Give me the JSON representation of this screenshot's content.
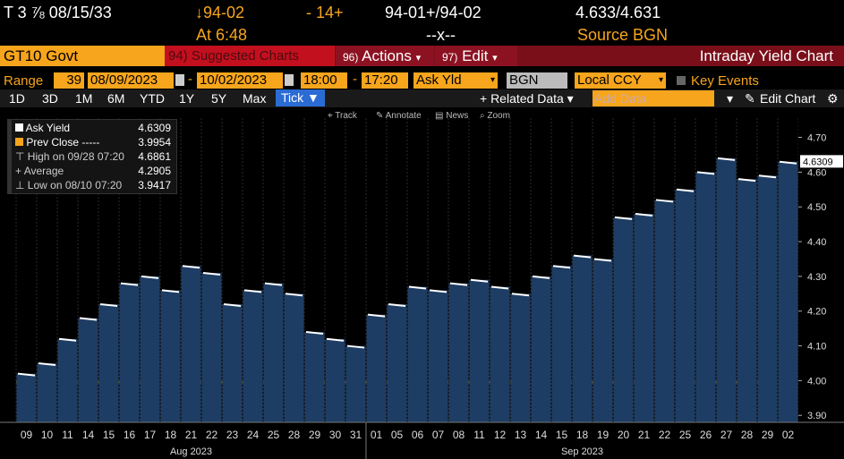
{
  "header": {
    "security": "T 3 ⅞ 08/15/33",
    "price_change": "↓94-02",
    "tick_change": "- 14+",
    "bid_ask": "94-01+/94-02",
    "yield_bid_ask": "4.633/4.631",
    "time_label": "At 6:48",
    "size": "--x--",
    "source": "Source BGN"
  },
  "menu": {
    "ticker": "GT10 Govt",
    "suggested_num": "94)",
    "suggested": "Suggested Charts",
    "actions_num": "96)",
    "actions": "Actions",
    "edit_num": "97)",
    "edit": "Edit",
    "title": "Intraday Yield Chart"
  },
  "controls": {
    "range_label": "Range",
    "range_value": "39",
    "start_date": "08/09/2023",
    "end_date": "10/02/2023",
    "start_time": "18:00",
    "end_time": "17:20",
    "field": "Ask Yld",
    "source": "BGN",
    "currency": "Local CCY",
    "key_events": "Key Events"
  },
  "periods": [
    "1D",
    "3D",
    "1M",
    "6M",
    "YTD",
    "1Y",
    "5Y",
    "Max"
  ],
  "tick_label": "Tick ▼",
  "related_data": "+ Related Data ▾",
  "add_data_placeholder": "Add Data",
  "edit_chart": "Edit Chart",
  "toolbar": [
    "Track",
    "Annotate",
    "News",
    "Zoom"
  ],
  "legend": [
    {
      "label": "Ask Yield",
      "value": "4.6309",
      "color": "#ffffff"
    },
    {
      "label": "Prev Close -----",
      "value": "3.9954",
      "color": "#f7a51c"
    },
    {
      "label": "High on 09/28 07:20",
      "value": "4.6861",
      "color": "#aaaaaa"
    },
    {
      "label": "Average",
      "value": "4.2905",
      "color": "#aaaaaa"
    },
    {
      "label": "Low on 08/10 07:20",
      "value": "3.9417",
      "color": "#aaaaaa"
    }
  ],
  "chart_data": {
    "type": "bar",
    "categories": [
      "09",
      "10",
      "11",
      "14",
      "15",
      "16",
      "17",
      "18",
      "21",
      "22",
      "23",
      "24",
      "25",
      "28",
      "29",
      "30",
      "31",
      "01",
      "05",
      "06",
      "07",
      "08",
      "11",
      "12",
      "13",
      "14",
      "15",
      "18",
      "19",
      "20",
      "21",
      "22",
      "25",
      "26",
      "27",
      "28",
      "29",
      "02"
    ],
    "month_labels": [
      "Aug 2023",
      "Sep 2023"
    ],
    "values": [
      4.02,
      4.05,
      4.12,
      4.18,
      4.22,
      4.28,
      4.3,
      4.26,
      4.33,
      4.31,
      4.22,
      4.26,
      4.28,
      4.25,
      4.14,
      4.12,
      4.1,
      4.19,
      4.22,
      4.27,
      4.26,
      4.28,
      4.29,
      4.27,
      4.25,
      4.3,
      4.33,
      4.36,
      4.35,
      4.47,
      4.48,
      4.52,
      4.55,
      4.6,
      4.64,
      4.58,
      4.59,
      4.63
    ],
    "ylim": [
      3.88,
      4.74
    ],
    "yticks": [
      "3.90",
      "4.00",
      "4.10",
      "4.20",
      "4.30",
      "4.40",
      "4.50",
      "4.60",
      "4.70"
    ],
    "prev_close": 3.9954,
    "last_value_label": "4.6309",
    "last_value": 4.6309
  }
}
